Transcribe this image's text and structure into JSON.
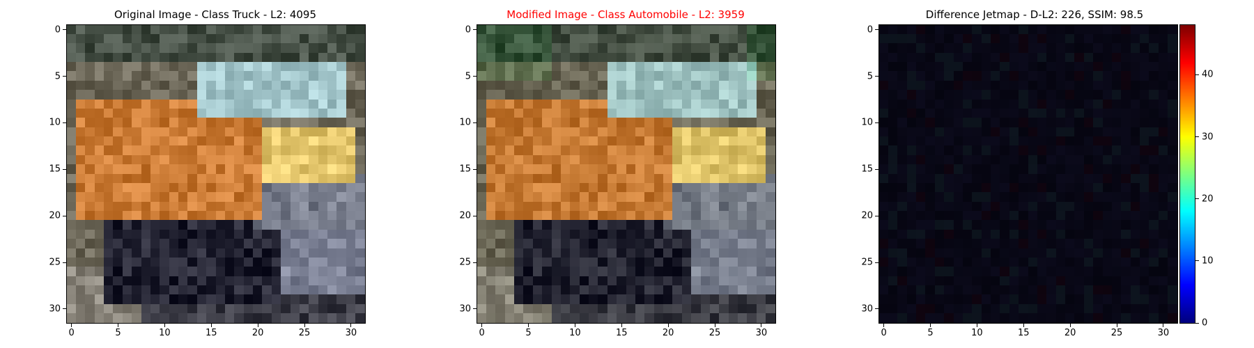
{
  "panels": [
    {
      "title": "Original Image - Class Truck - L2: 4095",
      "title_color": "#000000"
    },
    {
      "title": "Modified Image - Class Automobile - L2: 3959",
      "title_color": "#ff0000"
    },
    {
      "title": "Difference Jetmap - D-L2: 226, SSIM: 98.5",
      "title_color": "#000000"
    }
  ],
  "axes": {
    "x_ticks": [
      "0",
      "5",
      "10",
      "15",
      "20",
      "25",
      "30"
    ],
    "y_ticks": [
      "0",
      "5",
      "10",
      "15",
      "20",
      "25",
      "30"
    ],
    "range": [
      0,
      31
    ]
  },
  "colorbar": {
    "ticks": [
      "0",
      "10",
      "20",
      "30",
      "40"
    ],
    "range": [
      0,
      48
    ],
    "colormap": "jet"
  }
}
